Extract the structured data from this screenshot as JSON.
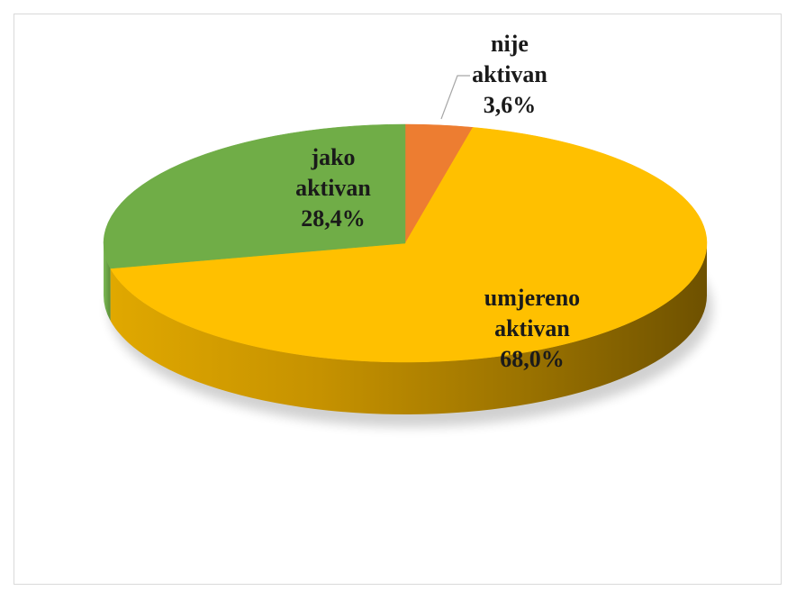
{
  "chart_data": {
    "type": "pie",
    "title": "",
    "style": "3d",
    "legend": "none",
    "slices": [
      {
        "name": "nije aktivan",
        "label_lines": [
          "nije",
          "aktivan",
          "3,6%"
        ],
        "value": 3.6,
        "display": "3,6%",
        "color": "#ED7D31",
        "dark": "#A9551F"
      },
      {
        "name": "umjereno aktivan",
        "label_lines": [
          "umjereno",
          "aktivan",
          "68,0%"
        ],
        "value": 68.0,
        "display": "68,0%",
        "color": "#FFC000",
        "dark": "#8C6A00"
      },
      {
        "name": "jako aktivan",
        "label_lines": [
          "jako",
          "aktivan",
          "28,4%"
        ],
        "value": 28.4,
        "display": "28,4%",
        "color": "#70AD47",
        "dark": "#4A7A2C"
      }
    ]
  }
}
